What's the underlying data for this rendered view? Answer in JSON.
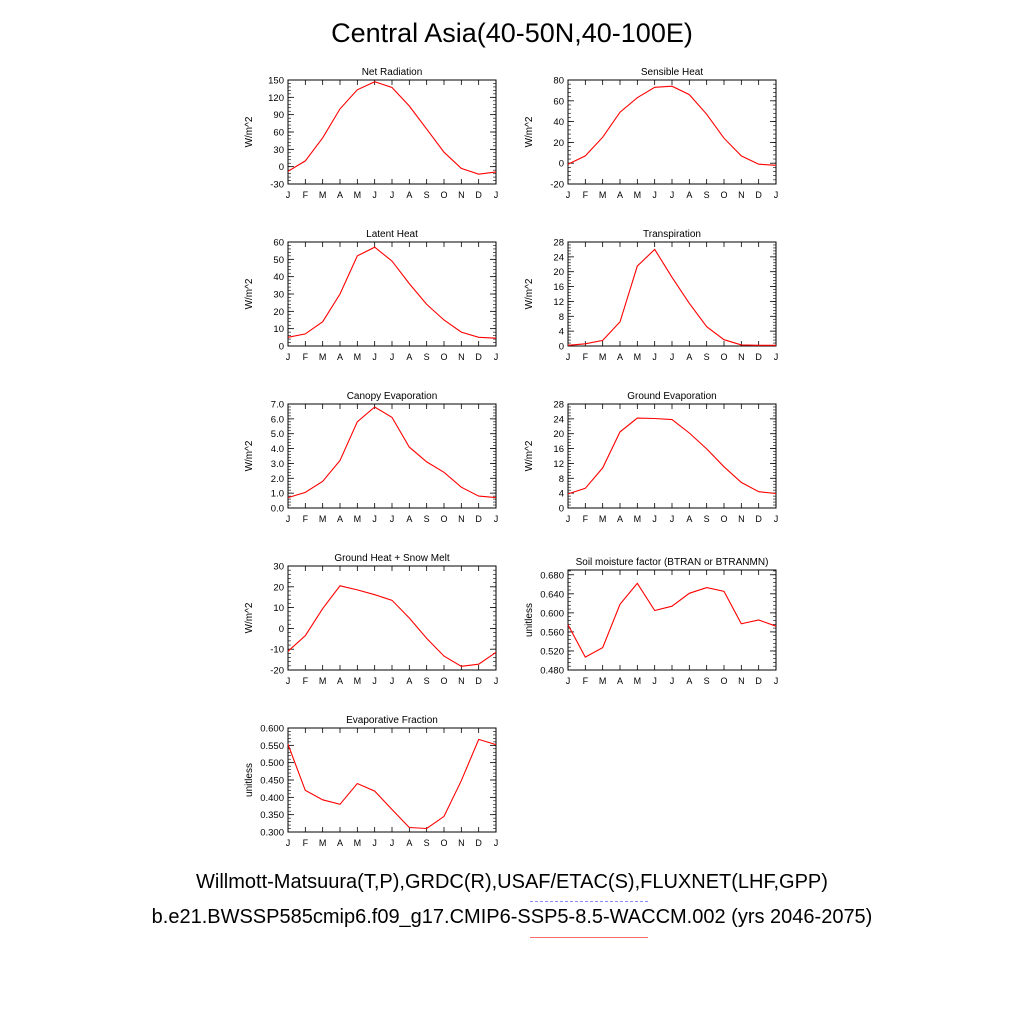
{
  "title": "Central Asia(40-50N,40-100E)",
  "legend": {
    "observations": "Willmott-Matsuura(T,P),GRDC(R),USAF/ETAC(S),FLUXNET(LHF,GPP)",
    "model": "b.e21.BWSSP585cmip6.f09_g17.CMIP6-SSP5-8.5-WACCM.002 (yrs 2046-2075)",
    "observations_color": "#8a8aff",
    "model_color": "#ff0000"
  },
  "chart_data": [
    {
      "type": "line",
      "title": "Net Radiation",
      "ylabel": "W/m^2",
      "xlabel": "",
      "categories": [
        "J",
        "F",
        "M",
        "A",
        "M",
        "J",
        "J",
        "A",
        "S",
        "O",
        "N",
        "D",
        "J"
      ],
      "values": [
        -8,
        10,
        50,
        100,
        133,
        147,
        137,
        105,
        65,
        25,
        -3,
        -13,
        -9
      ],
      "ylim": [
        -30,
        150
      ],
      "yticks": [
        "-30",
        "0",
        "30",
        "60",
        "90",
        "120",
        "150"
      ],
      "color": "#ff0000"
    },
    {
      "type": "line",
      "title": "Sensible Heat",
      "ylabel": "W/m^2",
      "xlabel": "",
      "categories": [
        "J",
        "F",
        "M",
        "A",
        "M",
        "J",
        "J",
        "A",
        "S",
        "O",
        "N",
        "D",
        "J"
      ],
      "values": [
        -1,
        7,
        25,
        49,
        63,
        73,
        74,
        66,
        47,
        24,
        7,
        -1,
        -2
      ],
      "ylim": [
        -20,
        80
      ],
      "yticks": [
        "-20",
        "0",
        "20",
        "40",
        "60",
        "80"
      ],
      "color": "#ff0000"
    },
    {
      "type": "line",
      "title": "Latent Heat",
      "ylabel": "W/m^2",
      "xlabel": "",
      "categories": [
        "J",
        "F",
        "M",
        "A",
        "M",
        "J",
        "J",
        "A",
        "S",
        "O",
        "N",
        "D",
        "J"
      ],
      "values": [
        5,
        7,
        14,
        30,
        52,
        57,
        49,
        36,
        24,
        15,
        8,
        5,
        4.5
      ],
      "ylim": [
        0,
        60
      ],
      "yticks": [
        "0",
        "10",
        "20",
        "30",
        "40",
        "50",
        "60"
      ],
      "color": "#ff0000"
    },
    {
      "type": "line",
      "title": "Transpiration",
      "ylabel": "W/m^2",
      "xlabel": "",
      "categories": [
        "J",
        "F",
        "M",
        "A",
        "M",
        "J",
        "J",
        "A",
        "S",
        "O",
        "N",
        "D",
        "J"
      ],
      "values": [
        0.2,
        0.6,
        1.5,
        6.5,
        21.5,
        26,
        18.5,
        11.5,
        5.2,
        1.7,
        0.3,
        0.2,
        0.2
      ],
      "ylim": [
        0,
        28
      ],
      "yticks": [
        "0",
        "4",
        "8",
        "12",
        "16",
        "20",
        "24",
        "28"
      ],
      "color": "#ff0000"
    },
    {
      "type": "line",
      "title": "Canopy Evaporation",
      "ylabel": "W/m^2",
      "xlabel": "",
      "categories": [
        "J",
        "F",
        "M",
        "A",
        "M",
        "J",
        "J",
        "A",
        "S",
        "O",
        "N",
        "D",
        "J"
      ],
      "values": [
        0.7,
        1.05,
        1.8,
        3.2,
        5.8,
        6.8,
        6.1,
        4.1,
        3.1,
        2.4,
        1.4,
        0.8,
        0.7
      ],
      "ylim": [
        0,
        7
      ],
      "yticks": [
        "0.0",
        "1.0",
        "2.0",
        "3.0",
        "4.0",
        "5.0",
        "6.0",
        "7.0"
      ],
      "color": "#ff0000"
    },
    {
      "type": "line",
      "title": "Ground Evaporation",
      "ylabel": "W/m^2",
      "xlabel": "",
      "categories": [
        "J",
        "F",
        "M",
        "A",
        "M",
        "J",
        "J",
        "A",
        "S",
        "O",
        "N",
        "D",
        "J"
      ],
      "values": [
        3.8,
        5.3,
        10.8,
        20.5,
        24.2,
        24.1,
        23.8,
        20.2,
        15.9,
        11.1,
        6.9,
        4.4,
        3.9
      ],
      "ylim": [
        0,
        28
      ],
      "yticks": [
        "0",
        "4",
        "8",
        "12",
        "16",
        "20",
        "24",
        "28"
      ],
      "color": "#ff0000"
    },
    {
      "type": "line",
      "title": "Ground Heat + Snow Melt",
      "ylabel": "W/m^2",
      "xlabel": "",
      "categories": [
        "J",
        "F",
        "M",
        "A",
        "M",
        "J",
        "J",
        "A",
        "S",
        "O",
        "N",
        "D",
        "J"
      ],
      "values": [
        -11,
        -3.5,
        9.5,
        20.5,
        18.5,
        16.2,
        13.5,
        5,
        -4.8,
        -13.3,
        -18.2,
        -17.2,
        -11.5
      ],
      "ylim": [
        -20,
        30
      ],
      "yticks": [
        "-20",
        "-10",
        "0",
        "10",
        "20",
        "30"
      ],
      "color": "#ff0000"
    },
    {
      "type": "line",
      "title": "Soil moisture factor (BTRAN or BTRANMN)",
      "ylabel": "unitless",
      "xlabel": "",
      "categories": [
        "J",
        "F",
        "M",
        "A",
        "M",
        "J",
        "J",
        "A",
        "S",
        "O",
        "N",
        "D",
        "J"
      ],
      "values": [
        0.575,
        0.507,
        0.527,
        0.618,
        0.662,
        0.605,
        0.614,
        0.641,
        0.653,
        0.645,
        0.577,
        0.585,
        0.572
      ],
      "ylim": [
        0.48,
        0.69
      ],
      "yticks": [
        "0.480",
        "0.520",
        "0.560",
        "0.600",
        "0.640",
        "0.680"
      ],
      "color": "#ff0000"
    },
    {
      "type": "line",
      "title": "Evaporative Fraction",
      "ylabel": "unitless",
      "xlabel": "",
      "categories": [
        "J",
        "F",
        "M",
        "A",
        "M",
        "J",
        "J",
        "A",
        "S",
        "O",
        "N",
        "D",
        "J"
      ],
      "values": [
        0.553,
        0.42,
        0.393,
        0.38,
        0.44,
        0.418,
        0.365,
        0.313,
        0.31,
        0.345,
        0.448,
        0.567,
        0.552
      ],
      "ylim": [
        0.3,
        0.6
      ],
      "yticks": [
        "0.300",
        "0.350",
        "0.400",
        "0.450",
        "0.500",
        "0.550",
        "0.600"
      ],
      "color": "#ff0000"
    }
  ]
}
